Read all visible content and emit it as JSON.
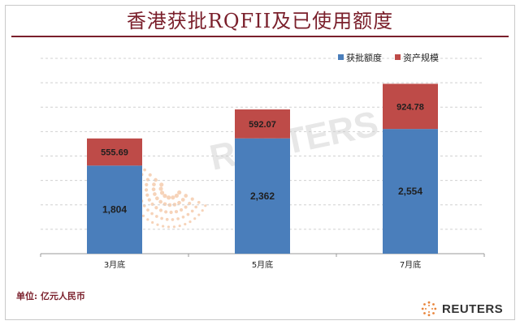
{
  "header": {
    "title": "香港获批RQFII及已使用额度"
  },
  "footer": {
    "unit_note": "单位: 亿元人民币",
    "brand": "REUTERS",
    "watermark": "REUTERS"
  },
  "colors": {
    "approved": "#4a7ebb",
    "assets": "#be4b48",
    "title": "#7a1f2b"
  },
  "chart_data": {
    "type": "bar",
    "stacked": true,
    "title": "香港获批RQFII及已使用额度",
    "categories": [
      "3月底",
      "5月底",
      "7月底"
    ],
    "series": [
      {
        "name": "获批额度",
        "values": [
          1804,
          2362,
          2554
        ],
        "labels": [
          "1,804",
          "2,362",
          "2,554"
        ]
      },
      {
        "name": "资产规模",
        "values": [
          555.69,
          592.07,
          924.78
        ],
        "labels": [
          "555.69",
          "592.07",
          "924.78"
        ]
      }
    ],
    "ylim": [
      0,
      4000
    ],
    "grid": true,
    "legend_position": "top-right"
  }
}
